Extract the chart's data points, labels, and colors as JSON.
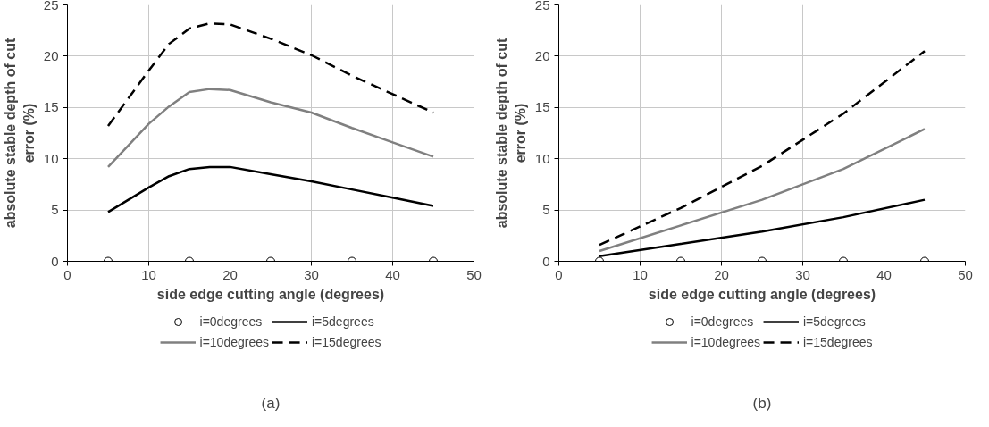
{
  "chart_data": [
    {
      "type": "line",
      "xlabel": "side edge cutting angle (degrees)",
      "ylabel": "absolute stable depth of cut\nerror (%)",
      "xlim": [
        0,
        50
      ],
      "xticks": [
        0,
        10,
        20,
        30,
        40,
        50
      ],
      "ylim": [
        0,
        25
      ],
      "yticks": [
        0,
        5,
        10,
        15,
        20,
        25
      ],
      "grid": true,
      "legend": "bottom",
      "annotations": [
        "(a)"
      ],
      "series": [
        {
          "name": "i=0degrees",
          "type": "scatter",
          "marker": "circle",
          "color": "#000000",
          "x": [
            5,
            15,
            25,
            35,
            45
          ],
          "values": [
            0,
            0,
            0,
            0,
            0
          ]
        },
        {
          "name": "i=5degrees",
          "line_style": "solid",
          "color": "#000000",
          "x": [
            5,
            10,
            12.5,
            15,
            17.5,
            20,
            25,
            30,
            35,
            40,
            45
          ],
          "values": [
            4.8,
            7.2,
            8.3,
            9.0,
            9.2,
            9.2,
            8.5,
            7.8,
            7.0,
            6.2,
            5.4
          ]
        },
        {
          "name": "i=10degrees",
          "line_style": "solid",
          "color": "#808080",
          "x": [
            5,
            10,
            12.5,
            15,
            17.5,
            20,
            25,
            30,
            35,
            40,
            45
          ],
          "values": [
            9.2,
            13.4,
            15.1,
            16.5,
            16.8,
            16.7,
            15.5,
            14.5,
            13.0,
            11.6,
            10.2
          ]
        },
        {
          "name": "i=15degrees",
          "line_style": "dashed",
          "color": "#000000",
          "x": [
            5,
            10,
            12.5,
            15,
            17.5,
            20,
            25,
            30,
            35,
            40,
            45
          ],
          "values": [
            13.2,
            18.6,
            21.2,
            22.7,
            23.2,
            23.1,
            21.7,
            20.1,
            18.1,
            16.3,
            14.5
          ]
        }
      ]
    },
    {
      "type": "line",
      "xlabel": "side edge cutting angle (degrees)",
      "ylabel": "absolute stable depth of cut\nerror (%)",
      "xlim": [
        0,
        50
      ],
      "xticks": [
        0,
        10,
        20,
        30,
        40,
        50
      ],
      "ylim": [
        0,
        25
      ],
      "yticks": [
        0,
        5,
        10,
        15,
        20,
        25
      ],
      "grid": true,
      "legend": "bottom",
      "annotations": [
        "(b)"
      ],
      "series": [
        {
          "name": "i=0degrees",
          "type": "scatter",
          "marker": "circle",
          "color": "#000000",
          "x": [
            5,
            15,
            25,
            35,
            45
          ],
          "values": [
            0,
            0,
            0,
            0,
            0
          ]
        },
        {
          "name": "i=5degrees",
          "line_style": "solid",
          "color": "#000000",
          "x": [
            5,
            15,
            25,
            35,
            45
          ],
          "values": [
            0.5,
            1.7,
            2.9,
            4.3,
            6.0
          ]
        },
        {
          "name": "i=10degrees",
          "line_style": "solid",
          "color": "#808080",
          "x": [
            5,
            15,
            25,
            35,
            45
          ],
          "values": [
            1.0,
            3.5,
            6.0,
            9.0,
            12.9
          ]
        },
        {
          "name": "i=15degrees",
          "line_style": "dashed",
          "color": "#000000",
          "x": [
            5,
            15,
            25,
            35,
            45
          ],
          "values": [
            1.6,
            5.2,
            9.3,
            14.4,
            20.5
          ]
        }
      ]
    }
  ]
}
